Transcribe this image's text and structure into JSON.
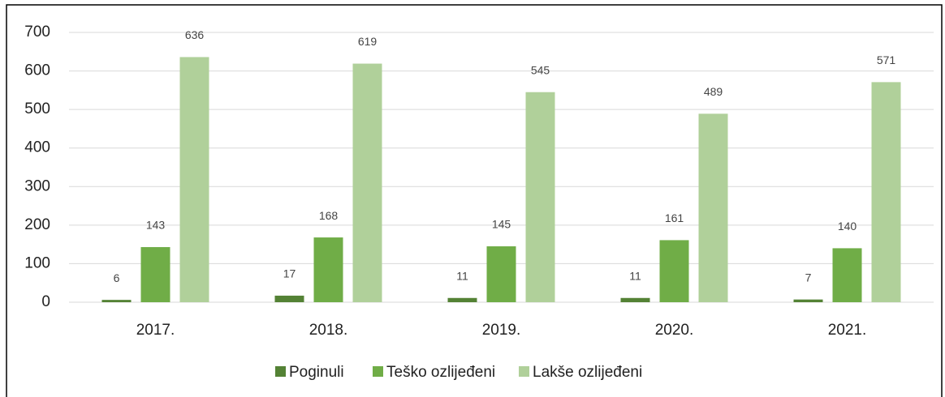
{
  "chart_data": {
    "type": "bar",
    "categories": [
      "2017.",
      "2018.",
      "2019.",
      "2020.",
      "2021."
    ],
    "series": [
      {
        "name": "Poginuli",
        "color": "#548235",
        "values": [
          6,
          17,
          11,
          11,
          7
        ]
      },
      {
        "name": "Teško ozlijeđeni",
        "color": "#70ad47",
        "values": [
          143,
          168,
          145,
          161,
          140
        ]
      },
      {
        "name": "Lakše ozlijeđeni",
        "color": "#b0d09a",
        "values": [
          636,
          619,
          545,
          489,
          571
        ]
      }
    ],
    "ylim": [
      0,
      700
    ],
    "yticks": [
      0,
      100,
      200,
      300,
      400,
      500,
      600,
      700
    ],
    "grid": true,
    "legend": "bottom"
  }
}
